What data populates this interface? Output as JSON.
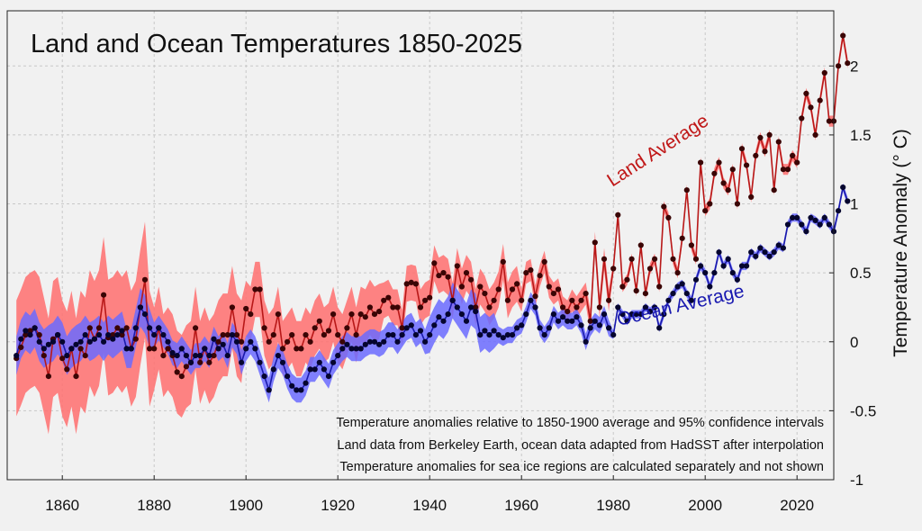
{
  "chart_data": {
    "type": "line",
    "title": "Land and Ocean Temperatures 1850-2025",
    "xlabel": "",
    "ylabel": "Temperature Anomaly (° C)",
    "xlim": [
      1848,
      2028
    ],
    "ylim": [
      -1,
      2.4
    ],
    "x_ticks": [
      1860,
      1880,
      1900,
      1920,
      1940,
      1960,
      1980,
      2000,
      2020
    ],
    "y_ticks": [
      -1,
      -0.5,
      0,
      0.5,
      1,
      1.5,
      2
    ],
    "y_tick_labels": [
      "-1",
      "-0.5",
      "0",
      "0.5",
      "1",
      "1.5",
      "2"
    ],
    "grid": true,
    "years_start": 1850,
    "annotations": [
      "Temperature anomalies relative to 1850-1900 average and 95% confidence intervals",
      "Land data from Berkeley Earth, ocean data adapted from HadSST after interpolation",
      "Temperature anomalies for sea ice regions are calculated separately and not shown"
    ],
    "series": [
      {
        "name": "Land Average",
        "color": "#b81818",
        "band_color": "#ff6e6e",
        "values": [
          -0.12,
          -0.04,
          0.05,
          0.08,
          0.1,
          0.05,
          -0.1,
          -0.25,
          0.02,
          0.05,
          -0.12,
          -0.2,
          -0.05,
          -0.25,
          -0.05,
          -0.1,
          0.1,
          0.02,
          0.1,
          0.34,
          0.03,
          0.05,
          0.1,
          0.05,
          0.1,
          -0.05,
          0.02,
          0.25,
          0.45,
          -0.05,
          -0.05,
          0.1,
          -0.1,
          -0.05,
          -0.1,
          -0.22,
          -0.25,
          -0.18,
          -0.15,
          0.1,
          -0.15,
          -0.05,
          -0.15,
          -0.1,
          0.0,
          0.05,
          0.05,
          0.25,
          0.05,
          0.0,
          0.24,
          0.2,
          0.38,
          0.38,
          0.1,
          0.0,
          0.05,
          0.2,
          -0.05,
          0.0,
          0.05,
          -0.05,
          -0.05,
          0.05,
          0.0,
          0.1,
          0.15,
          0.05,
          0.08,
          0.2,
          0.05,
          0.0,
          0.1,
          0.2,
          0.05,
          0.2,
          0.18,
          0.25,
          0.2,
          0.22,
          0.3,
          0.32,
          0.25,
          0.25,
          0.1,
          0.42,
          0.43,
          0.42,
          0.25,
          0.3,
          0.32,
          0.57,
          0.48,
          0.5,
          0.47,
          0.3,
          0.55,
          0.4,
          0.5,
          0.45,
          0.25,
          0.4,
          0.35,
          0.25,
          0.3,
          0.38,
          0.58,
          0.3,
          0.38,
          0.42,
          0.3,
          0.5,
          0.52,
          0.33,
          0.48,
          0.58,
          0.4,
          0.35,
          0.38,
          0.25,
          0.22,
          0.3,
          0.25,
          0.3,
          0.35,
          0.15,
          0.72,
          0.25,
          0.6,
          0.3,
          0.53,
          0.92,
          0.4,
          0.45,
          0.6,
          0.37,
          0.7,
          0.35,
          0.53,
          0.6,
          0.4,
          0.98,
          0.9,
          0.6,
          0.5,
          0.75,
          1.1,
          0.7,
          0.6,
          1.3,
          0.95,
          1.0,
          1.22,
          1.3,
          1.15,
          1.1,
          1.25,
          1.0,
          1.4,
          1.28,
          1.05,
          1.35,
          1.48,
          1.38,
          1.5,
          1.1,
          1.45,
          1.25,
          1.25,
          1.35,
          1.3,
          1.62,
          1.8,
          1.7,
          1.5,
          1.75,
          1.95,
          1.6,
          1.6,
          2.0,
          2.22,
          2.02
        ]
      },
      {
        "name": "Ocean Average",
        "color": "#1a1aaa",
        "band_color": "#6b6bff",
        "values": [
          -0.1,
          0.02,
          0.08,
          0.05,
          0.1,
          0.0,
          -0.05,
          -0.02,
          0.0,
          0.05,
          0.0,
          -0.1,
          -0.05,
          -0.02,
          0.0,
          0.05,
          0.0,
          0.02,
          0.05,
          0.0,
          0.05,
          0.02,
          0.05,
          0.08,
          -0.05,
          -0.05,
          0.1,
          0.25,
          0.2,
          0.1,
          0.05,
          0.1,
          0.05,
          0.0,
          -0.08,
          -0.1,
          -0.05,
          -0.1,
          -0.15,
          -0.1,
          -0.1,
          -0.05,
          -0.1,
          0.02,
          -0.05,
          -0.02,
          -0.1,
          0.05,
          0.0,
          -0.15,
          -0.05,
          0.0,
          -0.05,
          -0.15,
          -0.25,
          -0.35,
          -0.2,
          -0.1,
          -0.15,
          -0.25,
          -0.32,
          -0.35,
          -0.35,
          -0.3,
          -0.2,
          -0.2,
          -0.15,
          -0.2,
          -0.25,
          -0.15,
          -0.1,
          -0.05,
          -0.02,
          -0.05,
          -0.05,
          -0.05,
          -0.02,
          0.0,
          0.0,
          -0.02,
          0.0,
          0.05,
          0.05,
          0.0,
          0.05,
          0.1,
          0.12,
          0.05,
          0.08,
          0.0,
          0.05,
          0.12,
          0.18,
          0.15,
          0.2,
          0.3,
          0.25,
          0.2,
          0.15,
          0.25,
          0.22,
          0.05,
          0.08,
          0.05,
          0.08,
          0.05,
          0.03,
          0.05,
          0.05,
          0.1,
          0.12,
          0.2,
          0.3,
          0.25,
          0.1,
          0.05,
          0.1,
          0.2,
          0.15,
          0.18,
          0.15,
          0.15,
          0.18,
          0.12,
          0.0,
          0.1,
          0.15,
          0.12,
          0.2,
          0.1,
          0.05,
          0.25,
          0.2,
          0.15,
          0.2,
          0.2,
          0.2,
          0.25,
          0.22,
          0.25,
          0.1,
          0.2,
          0.3,
          0.35,
          0.4,
          0.42,
          0.35,
          0.3,
          0.45,
          0.55,
          0.5,
          0.4,
          0.5,
          0.65,
          0.55,
          0.6,
          0.5,
          0.45,
          0.55,
          0.55,
          0.65,
          0.62,
          0.68,
          0.65,
          0.62,
          0.65,
          0.7,
          0.68,
          0.85,
          0.9,
          0.9,
          0.85,
          0.8,
          0.9,
          0.88,
          0.85,
          0.9,
          0.85,
          0.8,
          0.95,
          1.12,
          1.02
        ]
      }
    ]
  }
}
